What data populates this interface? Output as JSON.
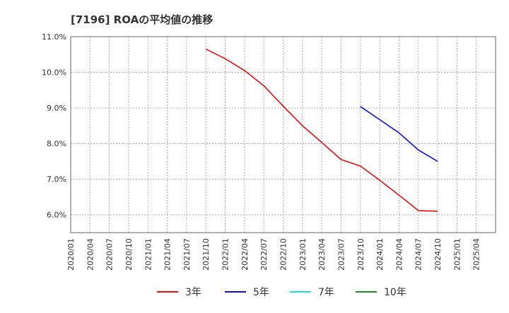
{
  "chart_data": {
    "type": "line",
    "title": "[7196]  ROAの平均値の推移",
    "xlabel": "",
    "ylabel": "",
    "ylim": [
      5.5,
      11.0
    ],
    "yticks": [
      6.0,
      7.0,
      8.0,
      9.0,
      10.0,
      11.0
    ],
    "ytick_labels": [
      "6.0%",
      "7.0%",
      "8.0%",
      "9.0%",
      "10.0%",
      "11.0%"
    ],
    "x_labels": [
      "2020/01",
      "2020/04",
      "2020/07",
      "2020/10",
      "2021/01",
      "2021/04",
      "2021/07",
      "2021/10",
      "2022/01",
      "2022/04",
      "2022/07",
      "2022/10",
      "2023/01",
      "2023/04",
      "2023/07",
      "2023/10",
      "2024/01",
      "2024/04",
      "2024/07",
      "2024/10",
      "2025/01",
      "2025/04"
    ],
    "grid": true,
    "legend_position": "bottom",
    "series": [
      {
        "name": "3年",
        "color": "#dd1111",
        "points": [
          [
            7,
            10.65
          ],
          [
            8,
            10.38
          ],
          [
            9,
            10.05
          ],
          [
            10,
            9.62
          ],
          [
            11,
            9.05
          ],
          [
            12,
            8.5
          ],
          [
            13,
            8.03
          ],
          [
            14,
            7.55
          ],
          [
            15,
            7.37
          ],
          [
            16,
            6.97
          ],
          [
            17,
            6.55
          ],
          [
            18,
            6.12
          ],
          [
            19,
            6.1
          ]
        ]
      },
      {
        "name": "5年",
        "color": "#1111cc",
        "points": [
          [
            15,
            9.04
          ],
          [
            16,
            8.67
          ],
          [
            17,
            8.3
          ],
          [
            18,
            7.82
          ],
          [
            19,
            7.5
          ]
        ]
      },
      {
        "name": "7年",
        "color": "#22dddd",
        "points": []
      },
      {
        "name": "10年",
        "color": "#228822",
        "points": []
      }
    ]
  }
}
